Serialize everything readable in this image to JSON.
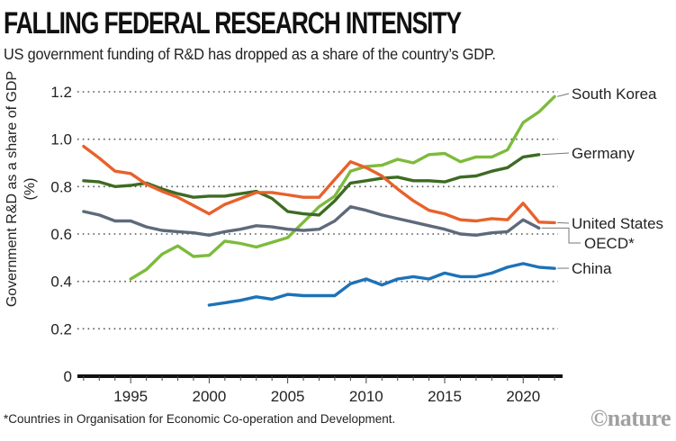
{
  "header": {
    "title": "FALLING FEDERAL RESEARCH INTENSITY",
    "subtitle": "US government funding of R&D has dropped as a share of the country’s GDP."
  },
  "footer": {
    "footnote": "*Countries in Organisation for Economic Co-operation and Development.",
    "credit": "©nature"
  },
  "chart_data": {
    "type": "line",
    "title": "FALLING FEDERAL RESEARCH INTENSITY",
    "subtitle": "US government funding of R&D has dropped as a share of the country’s GDP.",
    "xlabel": "",
    "ylabel": "Government R&D as a share of GDP (%)",
    "xlim": [
      1992,
      2022
    ],
    "ylim": [
      0,
      1.2
    ],
    "yticks": [
      0,
      0.2,
      0.4,
      0.6,
      0.8,
      1.0,
      1.2
    ],
    "ytick_labels": [
      "0",
      "0.2",
      "0.4",
      "0.6",
      "0.8",
      "1.0",
      "1.2"
    ],
    "xticks": [
      1995,
      2000,
      2005,
      2010,
      2015,
      2020
    ],
    "xtick_labels": [
      "1995",
      "2000",
      "2005",
      "2010",
      "2015",
      "2020"
    ],
    "grid": "horizontal dotted",
    "legend": "direct labels at right",
    "series": [
      {
        "name": "South Korea",
        "color": "#7dbb3c",
        "x": [
          1995,
          1996,
          1997,
          1998,
          1999,
          2000,
          2001,
          2002,
          2003,
          2004,
          2005,
          2006,
          2007,
          2008,
          2009,
          2010,
          2011,
          2012,
          2013,
          2014,
          2015,
          2016,
          2017,
          2018,
          2019,
          2020,
          2021,
          2022
        ],
        "values": [
          0.41,
          0.45,
          0.515,
          0.55,
          0.505,
          0.51,
          0.57,
          0.56,
          0.545,
          0.565,
          0.585,
          0.65,
          0.715,
          0.76,
          0.865,
          0.885,
          0.89,
          0.915,
          0.9,
          0.935,
          0.94,
          0.905,
          0.925,
          0.925,
          0.955,
          1.07,
          1.115,
          1.18
        ]
      },
      {
        "name": "Germany",
        "color": "#3d6b22",
        "x": [
          1992,
          1993,
          1994,
          1995,
          1996,
          1997,
          1998,
          1999,
          2000,
          2001,
          2002,
          2003,
          2004,
          2005,
          2006,
          2007,
          2008,
          2009,
          2010,
          2011,
          2012,
          2013,
          2014,
          2015,
          2016,
          2017,
          2018,
          2019,
          2020,
          2021
        ],
        "values": [
          0.825,
          0.82,
          0.8,
          0.805,
          0.815,
          0.79,
          0.77,
          0.755,
          0.76,
          0.76,
          0.77,
          0.78,
          0.75,
          0.695,
          0.685,
          0.68,
          0.74,
          0.815,
          0.825,
          0.835,
          0.84,
          0.825,
          0.825,
          0.82,
          0.84,
          0.845,
          0.865,
          0.88,
          0.925,
          0.935
        ]
      },
      {
        "name": "United States",
        "color": "#e8612c",
        "x": [
          1992,
          1993,
          1994,
          1995,
          1996,
          1997,
          1998,
          1999,
          2000,
          2001,
          2002,
          2003,
          2004,
          2005,
          2006,
          2007,
          2008,
          2009,
          2010,
          2011,
          2012,
          2013,
          2014,
          2015,
          2016,
          2017,
          2018,
          2019,
          2020,
          2021,
          2022
        ],
        "values": [
          0.97,
          0.92,
          0.865,
          0.855,
          0.81,
          0.78,
          0.755,
          0.72,
          0.685,
          0.725,
          0.75,
          0.775,
          0.775,
          0.765,
          0.755,
          0.755,
          0.83,
          0.905,
          0.88,
          0.845,
          0.79,
          0.74,
          0.7,
          0.685,
          0.66,
          0.655,
          0.665,
          0.66,
          0.73,
          0.65,
          0.648
        ]
      },
      {
        "name": "OECD*",
        "color": "#5e6a7a",
        "x": [
          1992,
          1993,
          1994,
          1995,
          1996,
          1997,
          1998,
          1999,
          2000,
          2001,
          2002,
          2003,
          2004,
          2005,
          2006,
          2007,
          2008,
          2009,
          2010,
          2011,
          2012,
          2013,
          2014,
          2015,
          2016,
          2017,
          2018,
          2019,
          2020,
          2021
        ],
        "values": [
          0.695,
          0.68,
          0.655,
          0.655,
          0.63,
          0.615,
          0.61,
          0.605,
          0.595,
          0.61,
          0.62,
          0.635,
          0.63,
          0.62,
          0.615,
          0.62,
          0.655,
          0.715,
          0.7,
          0.68,
          0.665,
          0.65,
          0.635,
          0.62,
          0.6,
          0.595,
          0.605,
          0.61,
          0.66,
          0.625
        ]
      },
      {
        "name": "China",
        "color": "#1d72b8",
        "x": [
          2000,
          2001,
          2002,
          2003,
          2004,
          2005,
          2006,
          2007,
          2008,
          2009,
          2010,
          2011,
          2012,
          2013,
          2014,
          2015,
          2016,
          2017,
          2018,
          2019,
          2020,
          2021,
          2022
        ],
        "values": [
          0.3,
          0.31,
          0.32,
          0.335,
          0.325,
          0.345,
          0.34,
          0.34,
          0.34,
          0.39,
          0.41,
          0.385,
          0.41,
          0.42,
          0.41,
          0.435,
          0.42,
          0.42,
          0.435,
          0.46,
          0.475,
          0.46,
          0.455
        ]
      }
    ]
  }
}
